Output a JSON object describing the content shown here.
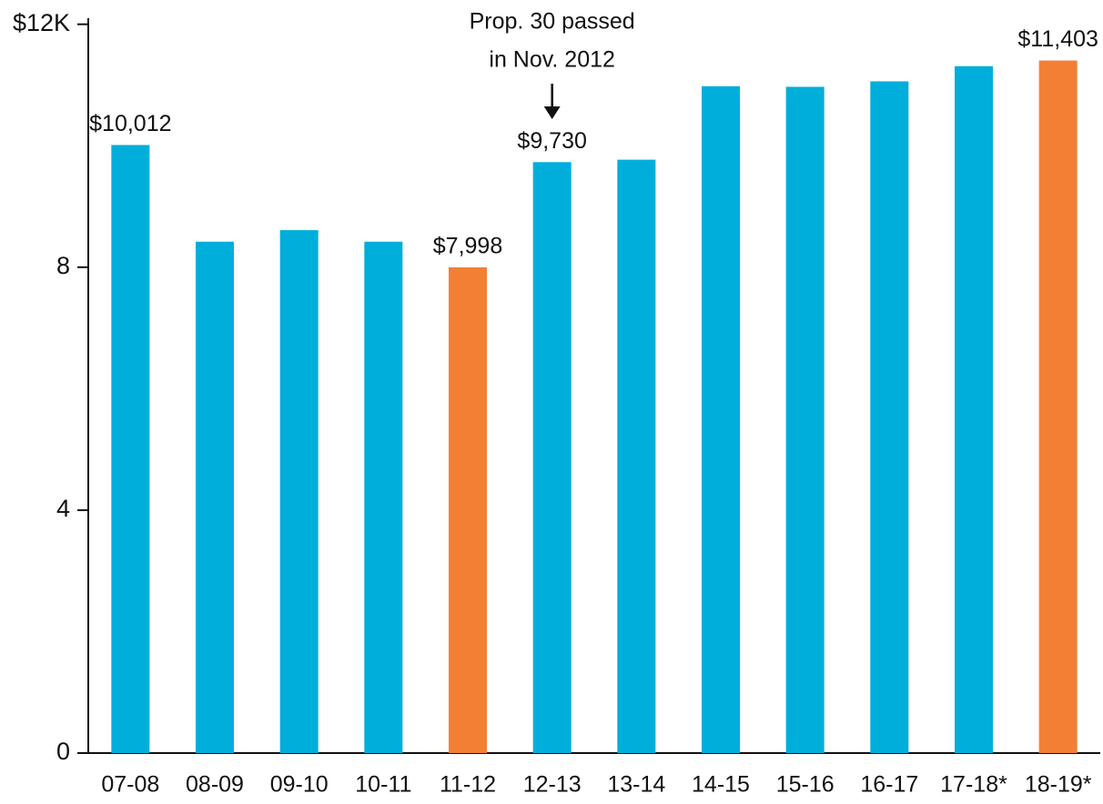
{
  "chart_data": {
    "type": "bar",
    "categories": [
      "07-08",
      "08-09",
      "09-10",
      "10-11",
      "11-12",
      "12-13",
      "13-14",
      "14-15",
      "15-16",
      "16-17",
      "17-18*",
      "18-19*"
    ],
    "values": [
      10.012,
      8.42,
      8.61,
      8.42,
      7.998,
      9.73,
      9.77,
      10.98,
      10.97,
      11.06,
      11.31,
      11.403
    ],
    "value_labels": [
      "$10,012",
      null,
      null,
      null,
      "$7,998",
      "$9,730",
      null,
      null,
      null,
      null,
      null,
      "$11,403"
    ],
    "colors": [
      "#00aedb",
      "#00aedb",
      "#00aedb",
      "#00aedb",
      "#f37f35",
      "#00aedb",
      "#00aedb",
      "#00aedb",
      "#00aedb",
      "#00aedb",
      "#00aedb",
      "#f37f35"
    ],
    "ylim": [
      0,
      12.1
    ],
    "yticks": [
      0,
      4,
      8,
      {
        "value": 12,
        "label": "$12K"
      }
    ],
    "annotation": {
      "lines": [
        "Prop. 30 passed",
        "in Nov. 2012"
      ],
      "category": 5
    }
  }
}
